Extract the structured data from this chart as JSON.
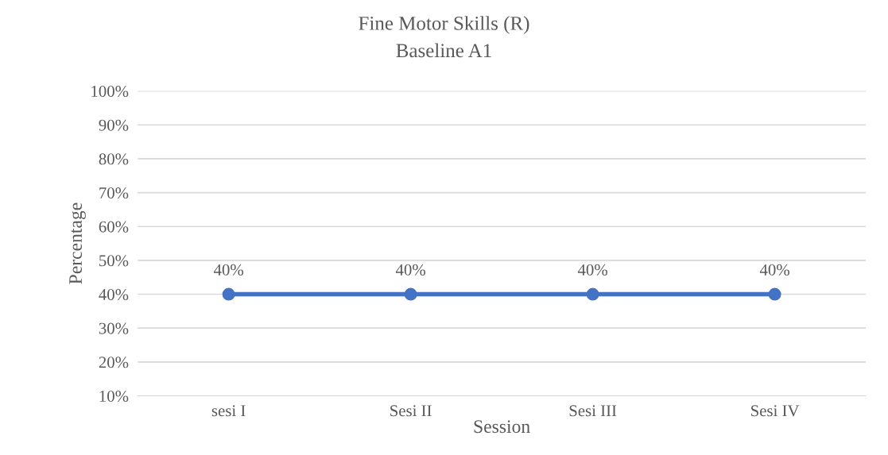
{
  "chart_data": {
    "type": "line",
    "title": "Fine Motor Skills (R)",
    "subtitle": "Baseline A1",
    "xlabel": "Session",
    "ylabel": "Percentage",
    "categories": [
      "sesi I",
      "Sesi II",
      "Sesi III",
      "Sesi IV"
    ],
    "series": [
      {
        "color": "#4472c4",
        "values": [
          40,
          40,
          40,
          40
        ],
        "value_labels": [
          "40%",
          "40%",
          "40%",
          "40%"
        ]
      }
    ],
    "ylim": [
      10,
      100
    ],
    "yticks": [
      {
        "value": 10,
        "label": "10%"
      },
      {
        "value": 20,
        "label": "20%"
      },
      {
        "value": 30,
        "label": "30%"
      },
      {
        "value": 40,
        "label": "40%"
      },
      {
        "value": 50,
        "label": "50%"
      },
      {
        "value": 60,
        "label": "60%"
      },
      {
        "value": 70,
        "label": "70%"
      },
      {
        "value": 80,
        "label": "80%"
      },
      {
        "value": 90,
        "label": "90%"
      },
      {
        "value": 100,
        "label": "100%"
      }
    ],
    "grid": "y",
    "marker": "circle",
    "line_style": "solid"
  }
}
